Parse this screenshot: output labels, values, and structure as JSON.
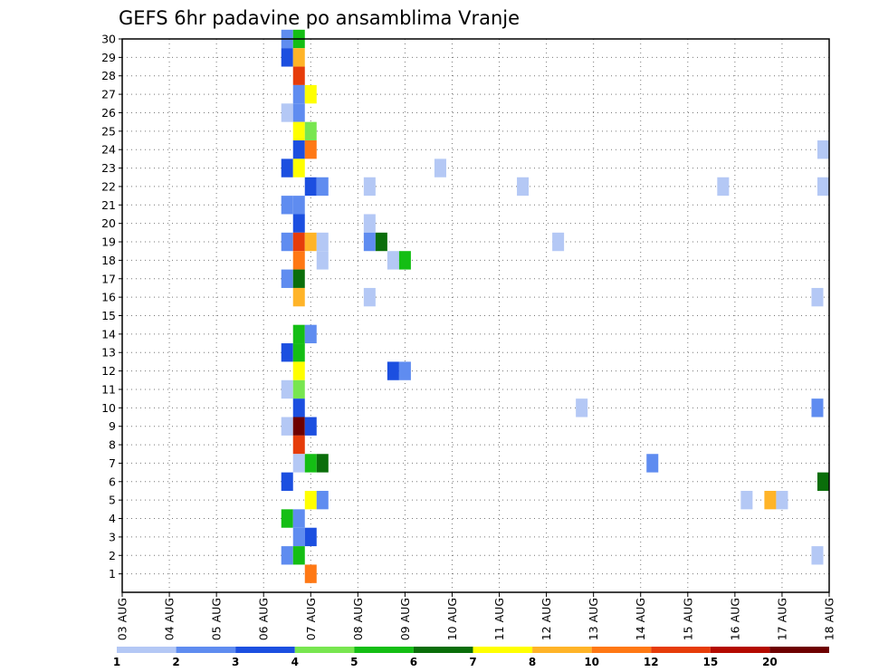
{
  "chart_data": {
    "type": "heatmap",
    "title": "GEFS 6hr padavine po ansamblima Vranje",
    "x_tick_labels": [
      "03 AUG",
      "04 AUG",
      "05 AUG",
      "06 AUG",
      "07 AUG",
      "08 AUG",
      "09 AUG",
      "10 AUG",
      "11 AUG",
      "12 AUG",
      "13 AUG",
      "14 AUG",
      "15 AUG",
      "16 AUG",
      "17 AUG",
      "18 AUG"
    ],
    "y_tick_labels": [
      "1",
      "2",
      "3",
      "4",
      "5",
      "6",
      "7",
      "8",
      "9",
      "10",
      "11",
      "12",
      "13",
      "14",
      "15",
      "16",
      "17",
      "18",
      "19",
      "20",
      "21",
      "22",
      "23",
      "24",
      "25",
      "26",
      "27",
      "28",
      "29",
      "30"
    ],
    "x_range_days": [
      0,
      15
    ],
    "y_range": [
      0,
      30
    ],
    "grid": true,
    "colorbar": {
      "labels": [
        "1",
        "2",
        "3",
        "4",
        "5",
        "6",
        "7",
        "8",
        "10",
        "12",
        "15",
        "20"
      ],
      "colors": [
        "#b4c8f5",
        "#5f8cf0",
        "#1c4fe0",
        "#78e650",
        "#14be14",
        "#0a6e0a",
        "#ffff00",
        "#ffb428",
        "#ff7814",
        "#e63c0a",
        "#b40a00",
        "#6e0000"
      ]
    },
    "cells": [
      {
        "t": 3.5,
        "m": 30,
        "c": 1
      },
      {
        "t": 3.75,
        "m": 30,
        "c": 4
      },
      {
        "t": 3.5,
        "m": 29,
        "c": 2
      },
      {
        "t": 3.75,
        "m": 29,
        "c": 7
      },
      {
        "t": 3.75,
        "m": 28,
        "c": 9
      },
      {
        "t": 3.75,
        "m": 27,
        "c": 1
      },
      {
        "t": 4.0,
        "m": 27,
        "c": 6
      },
      {
        "t": 3.5,
        "m": 26,
        "c": 0
      },
      {
        "t": 3.75,
        "m": 26,
        "c": 1
      },
      {
        "t": 3.75,
        "m": 25,
        "c": 6
      },
      {
        "t": 4.0,
        "m": 25,
        "c": 3
      },
      {
        "t": 3.75,
        "m": 24,
        "c": 2
      },
      {
        "t": 4.0,
        "m": 24,
        "c": 8
      },
      {
        "t": 14.95,
        "m": 24,
        "c": 0
      },
      {
        "t": 3.5,
        "m": 23,
        "c": 2
      },
      {
        "t": 3.75,
        "m": 23,
        "c": 6
      },
      {
        "t": 6.75,
        "m": 23,
        "c": 0
      },
      {
        "t": 4.0,
        "m": 22,
        "c": 2
      },
      {
        "t": 4.25,
        "m": 22,
        "c": 1
      },
      {
        "t": 5.25,
        "m": 22,
        "c": 0
      },
      {
        "t": 8.5,
        "m": 22,
        "c": 0
      },
      {
        "t": 12.75,
        "m": 22,
        "c": 0
      },
      {
        "t": 14.95,
        "m": 22,
        "c": 0
      },
      {
        "t": 3.5,
        "m": 21,
        "c": 1
      },
      {
        "t": 3.75,
        "m": 21,
        "c": 1
      },
      {
        "t": 3.75,
        "m": 20,
        "c": 2
      },
      {
        "t": 5.25,
        "m": 20,
        "c": 0
      },
      {
        "t": 3.5,
        "m": 19,
        "c": 1
      },
      {
        "t": 3.75,
        "m": 19,
        "c": 9
      },
      {
        "t": 4.0,
        "m": 19,
        "c": 7
      },
      {
        "t": 4.25,
        "m": 19,
        "c": 0
      },
      {
        "t": 5.25,
        "m": 19,
        "c": 1
      },
      {
        "t": 5.5,
        "m": 19,
        "c": 5
      },
      {
        "t": 9.25,
        "m": 19,
        "c": 0
      },
      {
        "t": 3.75,
        "m": 18,
        "c": 8
      },
      {
        "t": 4.25,
        "m": 18,
        "c": 0
      },
      {
        "t": 5.75,
        "m": 18,
        "c": 0
      },
      {
        "t": 6.0,
        "m": 18,
        "c": 4
      },
      {
        "t": 3.5,
        "m": 17,
        "c": 1
      },
      {
        "t": 3.75,
        "m": 17,
        "c": 5
      },
      {
        "t": 3.75,
        "m": 16,
        "c": 7
      },
      {
        "t": 5.25,
        "m": 16,
        "c": 0
      },
      {
        "t": 14.75,
        "m": 16,
        "c": 0
      },
      {
        "t": 3.75,
        "m": 14,
        "c": 4
      },
      {
        "t": 4.0,
        "m": 14,
        "c": 1
      },
      {
        "t": 3.5,
        "m": 13,
        "c": 2
      },
      {
        "t": 3.75,
        "m": 13,
        "c": 4
      },
      {
        "t": 3.75,
        "m": 12,
        "c": 6
      },
      {
        "t": 5.75,
        "m": 12,
        "c": 2
      },
      {
        "t": 6.0,
        "m": 12,
        "c": 1
      },
      {
        "t": 3.5,
        "m": 11,
        "c": 0
      },
      {
        "t": 3.75,
        "m": 11,
        "c": 3
      },
      {
        "t": 3.75,
        "m": 10,
        "c": 2
      },
      {
        "t": 9.75,
        "m": 10,
        "c": 0
      },
      {
        "t": 14.75,
        "m": 10,
        "c": 1
      },
      {
        "t": 3.5,
        "m": 9,
        "c": 0
      },
      {
        "t": 3.75,
        "m": 9,
        "c": 11
      },
      {
        "t": 4.0,
        "m": 9,
        "c": 2
      },
      {
        "t": 3.75,
        "m": 8,
        "c": 9
      },
      {
        "t": 3.75,
        "m": 7,
        "c": 0
      },
      {
        "t": 4.0,
        "m": 7,
        "c": 4
      },
      {
        "t": 4.25,
        "m": 7,
        "c": 5
      },
      {
        "t": 11.25,
        "m": 7,
        "c": 1
      },
      {
        "t": 3.5,
        "m": 6,
        "c": 2
      },
      {
        "t": 14.95,
        "m": 6,
        "c": 5
      },
      {
        "t": 4.0,
        "m": 5,
        "c": 6
      },
      {
        "t": 4.25,
        "m": 5,
        "c": 1
      },
      {
        "t": 13.25,
        "m": 5,
        "c": 0
      },
      {
        "t": 13.75,
        "m": 5,
        "c": 7
      },
      {
        "t": 14.0,
        "m": 5,
        "c": 0
      },
      {
        "t": 3.5,
        "m": 4,
        "c": 4
      },
      {
        "t": 3.75,
        "m": 4,
        "c": 1
      },
      {
        "t": 3.75,
        "m": 3,
        "c": 1
      },
      {
        "t": 4.0,
        "m": 3,
        "c": 2
      },
      {
        "t": 3.5,
        "m": 2,
        "c": 1
      },
      {
        "t": 3.75,
        "m": 2,
        "c": 4
      },
      {
        "t": 14.75,
        "m": 2,
        "c": 0
      },
      {
        "t": 4.0,
        "m": 1,
        "c": 8
      }
    ]
  }
}
